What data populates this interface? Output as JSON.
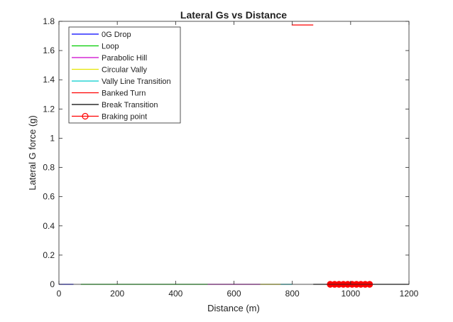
{
  "chart_data": {
    "type": "line",
    "title": "Lateral Gs vs Distance",
    "xlabel": "Distance (m)",
    "ylabel": "Lateral G force (g)",
    "xlim": [
      0,
      1200
    ],
    "ylim": [
      0,
      1.8
    ],
    "xticks": [
      0,
      200,
      400,
      600,
      800,
      1000,
      1200
    ],
    "yticks": [
      0,
      0.2,
      0.4,
      0.6,
      0.8,
      1,
      1.2,
      1.4,
      1.6,
      1.8
    ],
    "xtick_labels": [
      "0",
      "200",
      "400",
      "600",
      "800",
      "1000",
      "1200"
    ],
    "ytick_labels": [
      "0",
      "0.2",
      "0.4",
      "0.6",
      "0.8",
      "1",
      "1.2",
      "1.4",
      "1.6",
      "1.8"
    ],
    "grid": false,
    "legend_position": "top-left",
    "series": [
      {
        "name": "0G Drop",
        "color": "#0000ff",
        "marker": "none",
        "x": [
          0,
          50
        ],
        "y": [
          0,
          0
        ]
      },
      {
        "name": "Loop",
        "color": "#00cc00",
        "marker": "none",
        "x": [
          75,
          510
        ],
        "y": [
          0,
          0
        ]
      },
      {
        "name": "Parabolic Hill",
        "color": "#cc00cc",
        "marker": "none",
        "x": [
          510,
          690
        ],
        "y": [
          0,
          0
        ]
      },
      {
        "name": "Circular Vally",
        "color": "#e6e600",
        "marker": "none",
        "x": [
          690,
          760
        ],
        "y": [
          0,
          0
        ]
      },
      {
        "name": "Vally Line Transition",
        "color": "#00cccc",
        "marker": "none",
        "x": [
          760,
          800
        ],
        "y": [
          0,
          0
        ]
      },
      {
        "name": "Banked Turn",
        "color": "#ff0000",
        "marker": "none",
        "x": [
          798,
          872
        ],
        "y": [
          1.775,
          1.775
        ]
      },
      {
        "name": "Break Transition",
        "color": "#000000",
        "marker": "none",
        "x": [
          872,
          1200
        ],
        "y": [
          0,
          0
        ]
      },
      {
        "name": "Braking point",
        "color": "#ff0000",
        "marker": "circle",
        "x": [
          930,
          945,
          960,
          975,
          990,
          1005,
          1020,
          1035,
          1050,
          1065
        ],
        "y": [
          0,
          0,
          0,
          0,
          0,
          0,
          0,
          0,
          0,
          0
        ]
      }
    ]
  }
}
